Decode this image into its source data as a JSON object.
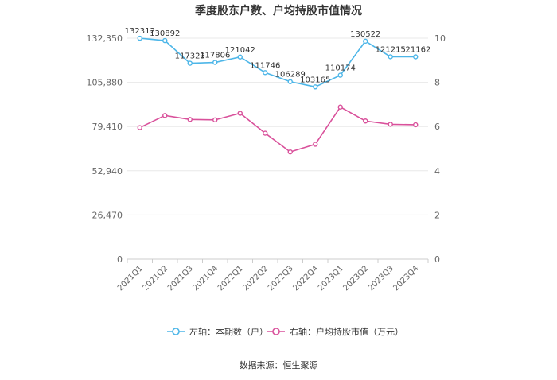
{
  "chart_data": {
    "type": "line",
    "title": "季度股东户数、户均持股市值情况",
    "categories": [
      "2021Q1",
      "2021Q2",
      "2021Q3",
      "2021Q4",
      "2022Q1",
      "2022Q2",
      "2022Q3",
      "2022Q4",
      "2023Q1",
      "2023Q2",
      "2023Q3",
      "2023Q4"
    ],
    "left_axis": {
      "ticks": [
        "0",
        "26,470",
        "52,940",
        "79,410",
        "105,880",
        "132,350"
      ],
      "ylim": [
        0,
        132350
      ]
    },
    "right_axis": {
      "ticks": [
        "0",
        "2",
        "4",
        "6",
        "8",
        "10"
      ],
      "ylim": [
        0,
        10
      ]
    },
    "series": [
      {
        "name": "左轴：本期数（户）",
        "axis": "left",
        "color": "#4db6e8",
        "values": [
          132312,
          130892,
          117323,
          117806,
          121042,
          111746,
          106289,
          103165,
          110174,
          130522,
          121215,
          121162
        ],
        "labels": [
          "132312",
          "130892",
          "117323",
          "117806",
          "121042",
          "111746",
          "106289",
          "103165",
          "110174",
          "130522",
          "121215",
          "121162"
        ]
      },
      {
        "name": "右轴：户均持股市值（万元）",
        "axis": "right",
        "color": "#d9519b",
        "values": [
          5.95,
          6.5,
          6.32,
          6.3,
          6.6,
          5.7,
          4.85,
          5.2,
          6.88,
          6.25,
          6.1,
          6.08
        ]
      }
    ],
    "grid": true,
    "legend_position": "bottom"
  },
  "source": "数据来源：恒生聚源"
}
